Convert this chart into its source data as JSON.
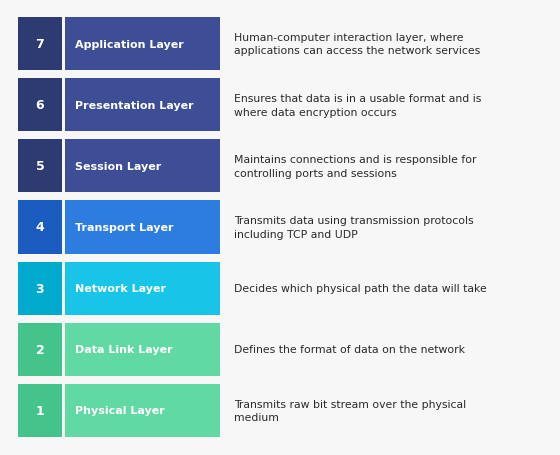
{
  "layers": [
    {
      "number": "7",
      "name": "Application Layer",
      "description": "Human-computer interaction layer, where\napplications can access the network services",
      "num_color": "#2e3b72",
      "bar_color": "#3d4e96"
    },
    {
      "number": "6",
      "name": "Presentation Layer",
      "description": "Ensures that data is in a usable format and is\nwhere data encryption occurs",
      "num_color": "#2e3b72",
      "bar_color": "#3d4e96"
    },
    {
      "number": "5",
      "name": "Session Layer",
      "description": "Maintains connections and is responsible for\ncontrolling ports and sessions",
      "num_color": "#2e3b72",
      "bar_color": "#3d4e96"
    },
    {
      "number": "4",
      "name": "Transport Layer",
      "description": "Transmits data using transmission protocols\nincluding TCP and UDP",
      "num_color": "#1a5cbf",
      "bar_color": "#2d7de0"
    },
    {
      "number": "3",
      "name": "Network Layer",
      "description": "Decides which physical path the data will take",
      "num_color": "#00aacc",
      "bar_color": "#18c5e8"
    },
    {
      "number": "2",
      "name": "Data Link Layer",
      "description": "Defines the format of data on the network",
      "num_color": "#44c48a",
      "bar_color": "#60d9a5"
    },
    {
      "number": "1",
      "name": "Physical Layer",
      "description": "Transmits raw bit stream over the physical\nmedium",
      "num_color": "#44c48a",
      "bar_color": "#60d9a5"
    }
  ],
  "bg_color": "#f7f7f7",
  "text_color": "#2a2a2a",
  "label_color": "#ffffff",
  "fig_width": 5.6,
  "fig_height": 4.56,
  "dpi": 100
}
